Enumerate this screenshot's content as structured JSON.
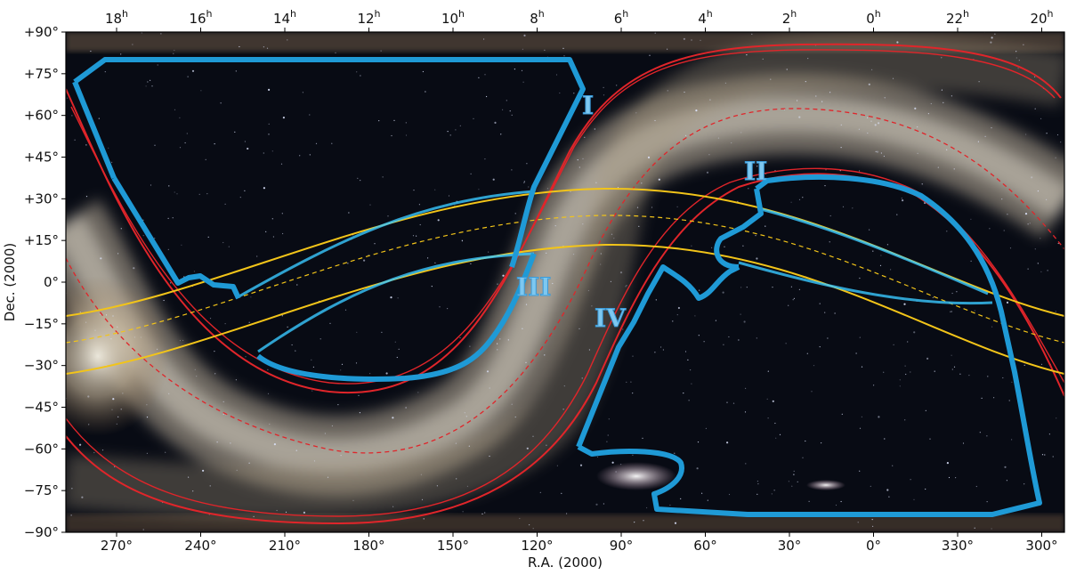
{
  "axes": {
    "xlabel": "R.A. (2000)",
    "ylabel": "Dec. (2000)",
    "ra_degree_ticks": [
      "270°",
      "240°",
      "210°",
      "180°",
      "150°",
      "120°",
      "90°",
      "60°",
      "30°",
      "0°",
      "330°",
      "300°"
    ],
    "ra_hour_ticks": [
      {
        "h": "18",
        "s": "h"
      },
      {
        "h": "16",
        "s": "h"
      },
      {
        "h": "14",
        "s": "h"
      },
      {
        "h": "12",
        "s": "h"
      },
      {
        "h": "10",
        "s": "h"
      },
      {
        "h": "8",
        "s": "h"
      },
      {
        "h": "6",
        "s": "h"
      },
      {
        "h": "4",
        "s": "h"
      },
      {
        "h": "2",
        "s": "h"
      },
      {
        "h": "0",
        "s": "h"
      },
      {
        "h": "22",
        "s": "h"
      },
      {
        "h": "20",
        "s": "h"
      }
    ],
    "dec_ticks": [
      "+90°",
      "+75°",
      "+60°",
      "+45°",
      "+30°",
      "+15°",
      "0°",
      "−15°",
      "−30°",
      "−45°",
      "−60°",
      "−75°",
      "−90°"
    ]
  },
  "regions": {
    "labels": [
      "I",
      "II",
      "III",
      "IV"
    ]
  },
  "colors": {
    "region_outline": "#1f9ad6",
    "galactic_band": "#e0252a",
    "ecliptic_band": "#f2c419",
    "sky_dark": "#070a12",
    "milky_way": "#c9bfae"
  }
}
